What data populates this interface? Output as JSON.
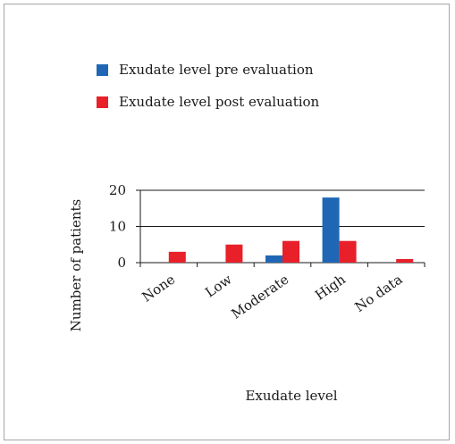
{
  "chart_data": {
    "type": "bar",
    "categories": [
      "None",
      "Low",
      "Moderate",
      "High",
      "No data"
    ],
    "series": [
      {
        "name": "Exudate level pre evaluation",
        "color": "#1f67b5",
        "values": [
          0,
          0,
          2,
          18,
          0
        ]
      },
      {
        "name": "Exudate level post evaluation",
        "color": "#e8202a",
        "values": [
          3,
          5,
          6,
          6,
          1
        ]
      }
    ],
    "xlabel": "Exudate level",
    "ylabel": "Number of patients",
    "ylim": [
      0,
      20
    ],
    "yticks": [
      "0",
      "10",
      "20"
    ],
    "grid": true,
    "legend_position": "top-left"
  }
}
